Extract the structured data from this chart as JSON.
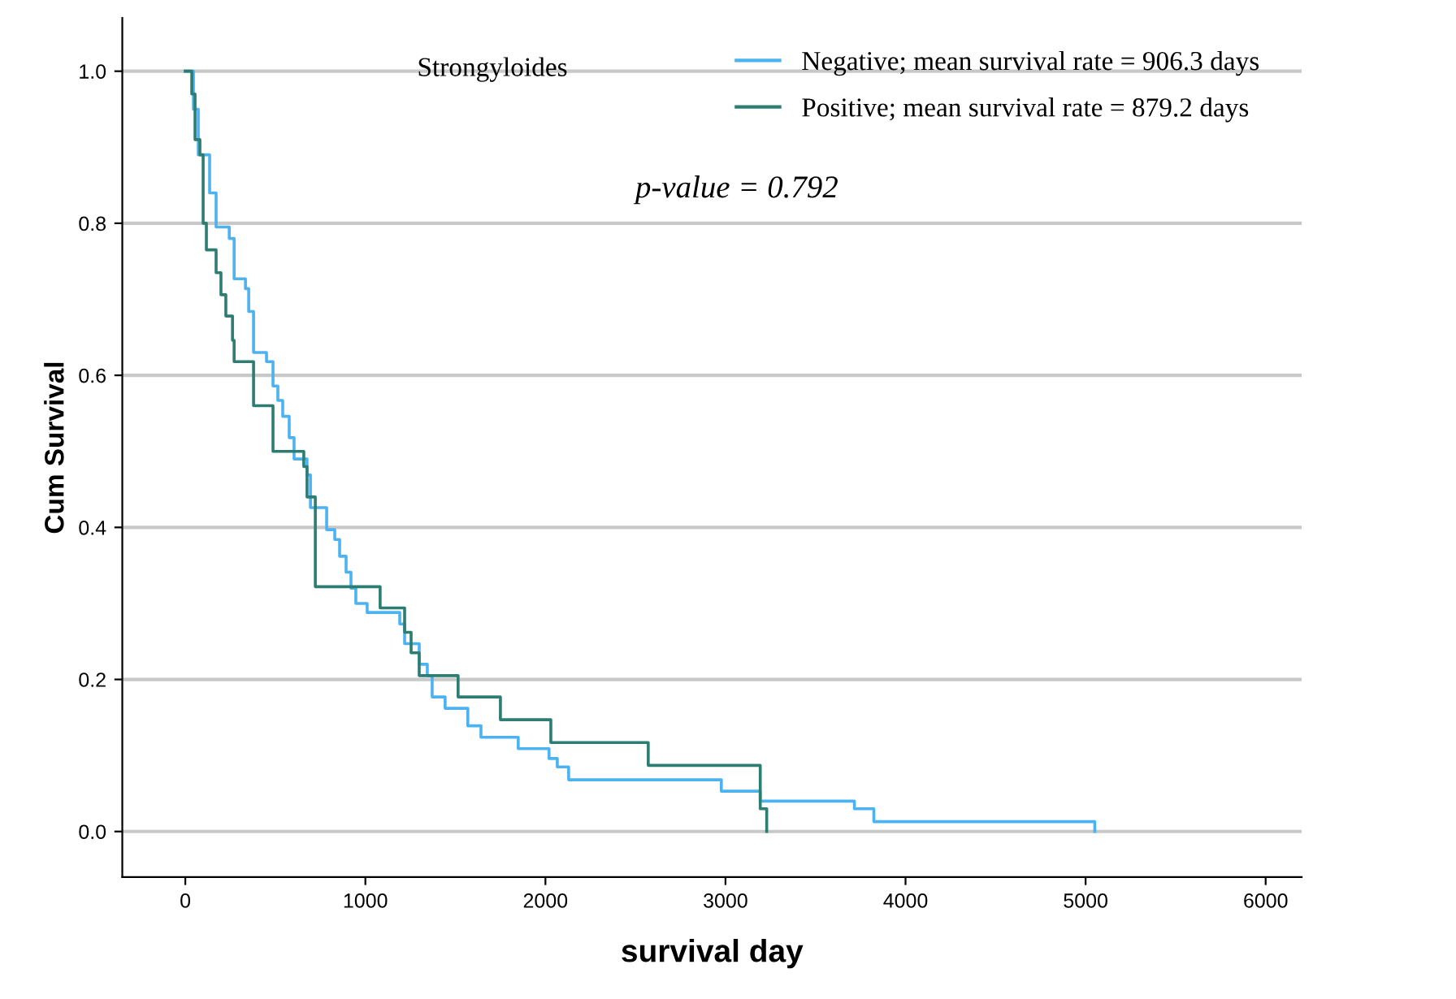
{
  "chart_data": {
    "type": "step",
    "xlabel": "survival day",
    "ylabel": "Cum Survival",
    "legend_title": "Strongyloides",
    "annotations": [
      "p-value = 0.792"
    ],
    "xlim": [
      -350,
      6200
    ],
    "ylim": [
      -0.06,
      1.07
    ],
    "xticks": [
      0,
      1000,
      2000,
      3000,
      4000,
      5000,
      6000
    ],
    "yticks": [
      {
        "value": 0,
        "label": "0.0"
      },
      {
        "value": 0.2,
        "label": "0.2"
      },
      {
        "value": 0.4,
        "label": "0.4"
      },
      {
        "value": 0.6,
        "label": "0.6"
      },
      {
        "value": 0.8,
        "label": "0.8"
      },
      {
        "value": 1,
        "label": "1.0"
      }
    ],
    "grid": "y",
    "legend": "top right",
    "line_style": "solid",
    "marker": "none",
    "series": [
      {
        "name": "Negative; mean survival rate = 906.3 days",
        "color": "#4db3f0",
        "x": [
          0,
          45,
          72,
          135,
          171,
          244,
          271,
          334,
          352,
          379,
          451,
          487,
          514,
          541,
          577,
          604,
          676,
          695,
          785,
          830,
          857,
          893,
          920,
          947,
          1010,
          1191,
          1218,
          1299,
          1344,
          1371,
          1443,
          1569,
          1642,
          1849,
          2020,
          2066,
          2129,
          2977,
          3193,
          3716,
          3824,
          5051
        ],
        "values": [
          1.0,
          0.95,
          0.89,
          0.84,
          0.795,
          0.78,
          0.727,
          0.714,
          0.684,
          0.63,
          0.618,
          0.586,
          0.567,
          0.546,
          0.518,
          0.49,
          0.469,
          0.426,
          0.397,
          0.384,
          0.362,
          0.341,
          0.32,
          0.3,
          0.288,
          0.273,
          0.247,
          0.22,
          0.205,
          0.177,
          0.162,
          0.139,
          0.124,
          0.109,
          0.096,
          0.085,
          0.068,
          0.053,
          0.04,
          0.03,
          0.013,
          0.0
        ]
      },
      {
        "name": "Positive; mean survival rate = 879.2 days",
        "color": "#2e7d72",
        "x": [
          0,
          36,
          54,
          81,
          99,
          117,
          171,
          198,
          225,
          262,
          271,
          379,
          487,
          658,
          676,
          722,
          1082,
          1218,
          1254,
          1299,
          1515,
          1750,
          2030,
          2571,
          3193,
          3229
        ],
        "values": [
          1.0,
          0.97,
          0.91,
          0.89,
          0.8,
          0.765,
          0.735,
          0.706,
          0.678,
          0.646,
          0.618,
          0.56,
          0.5,
          0.48,
          0.44,
          0.322,
          0.294,
          0.262,
          0.235,
          0.205,
          0.177,
          0.147,
          0.117,
          0.087,
          0.03,
          0.0
        ]
      }
    ]
  }
}
